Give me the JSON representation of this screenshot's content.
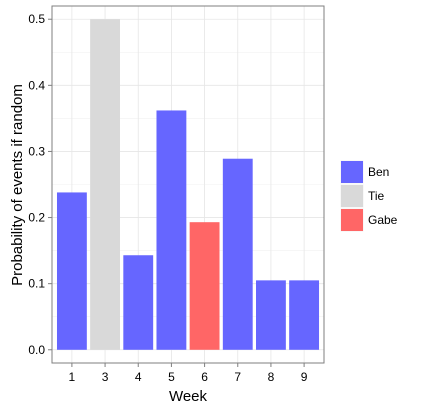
{
  "chart_data": {
    "type": "bar",
    "categories": [
      "1",
      "3",
      "4",
      "5",
      "6",
      "7",
      "8",
      "9"
    ],
    "values": [
      0.238,
      0.5,
      0.143,
      0.362,
      0.193,
      0.289,
      0.105,
      0.105
    ],
    "winners": [
      "Ben",
      "Tie",
      "Ben",
      "Ben",
      "Gabe",
      "Ben",
      "Ben",
      "Ben"
    ],
    "xlabel": "Week",
    "ylabel": "Probability of events if random",
    "ylim": [
      -0.02,
      0.52
    ],
    "yticks": [
      0.0,
      0.1,
      0.2,
      0.3,
      0.4,
      0.5
    ],
    "ytick_labels": [
      "0.0",
      "0.1",
      "0.2",
      "0.3",
      "0.4",
      "0.5"
    ],
    "grid": true,
    "legend": {
      "placement": "right",
      "entries": [
        {
          "name": "Ben",
          "color": "#6666ff"
        },
        {
          "name": "Tie",
          "color": "#d9d9d9"
        },
        {
          "name": "Gabe",
          "color": "#ff6666"
        }
      ]
    }
  }
}
